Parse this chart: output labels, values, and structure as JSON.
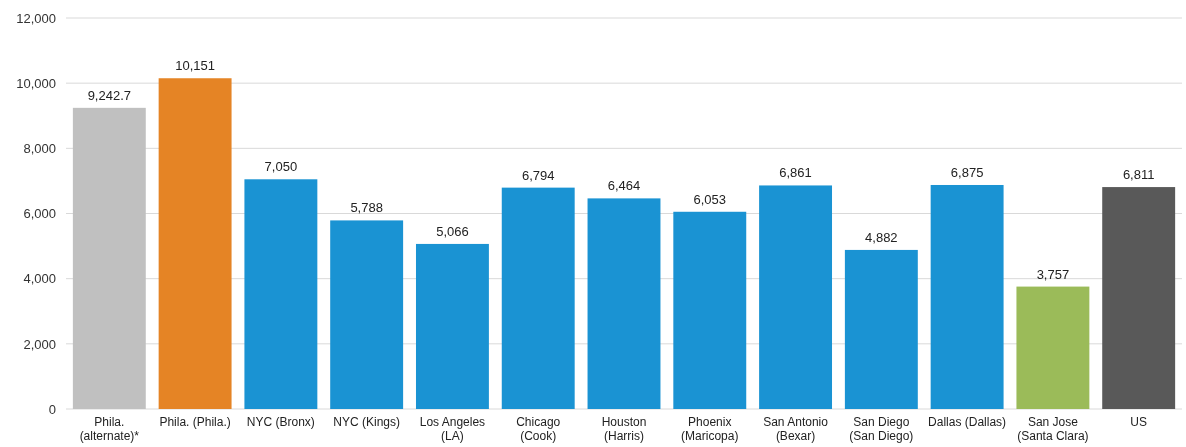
{
  "chart_data": {
    "type": "bar",
    "categories": [
      "Phila. (alternate)*",
      "Phila. (Phila.)",
      "NYC (Bronx)",
      "NYC (Kings)",
      "Los Angeles (LA)",
      "Chicago (Cook)",
      "Houston (Harris)",
      "Phoenix (Maricopa)",
      "San Antonio (Bexar)",
      "San Diego (San Diego)",
      "Dallas (Dallas)",
      "San Jose (Santa Clara)",
      "US"
    ],
    "values": [
      9242.7,
      10151,
      7050,
      5788,
      5066,
      6794,
      6464,
      6053,
      6861,
      4882,
      6875,
      3757,
      6811
    ],
    "colors": [
      "#c0c0c0",
      "#e58425",
      "#1a93d3",
      "#1a93d3",
      "#1a93d3",
      "#1a93d3",
      "#1a93d3",
      "#1a93d3",
      "#1a93d3",
      "#1a93d3",
      "#1a93d3",
      "#9bbb59",
      "#595959"
    ],
    "ylim": [
      0,
      12000
    ],
    "yticks": [
      {
        "value": 0,
        "label": "0"
      },
      {
        "value": 2000,
        "label": "2,000"
      },
      {
        "value": 4000,
        "label": "4,000"
      },
      {
        "value": 6000,
        "label": "6,000"
      },
      {
        "value": 8000,
        "label": "8,000"
      },
      {
        "value": 10000,
        "label": "10,000"
      },
      {
        "value": 12000,
        "label": "12,000"
      }
    ],
    "value_labels": [
      "9,242.7",
      "10,151",
      "7,050",
      "5,788",
      "5,066",
      "6,794",
      "6,464",
      "6,053",
      "6,861",
      "4,882",
      "6,875",
      "3,757",
      "6,811"
    ],
    "grid": "y"
  }
}
